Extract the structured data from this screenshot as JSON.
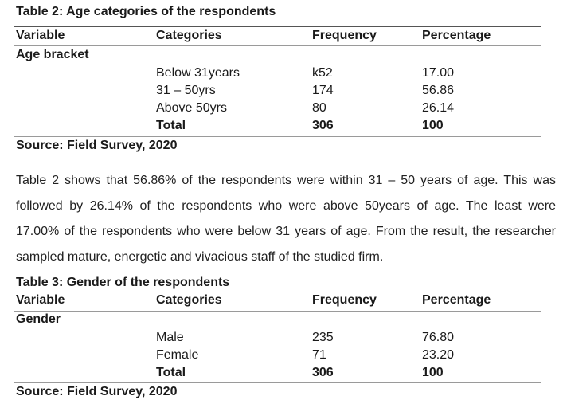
{
  "table2": {
    "title": "Table 2: Age categories of the respondents",
    "headers": [
      "Variable",
      "Categories",
      "Frequency",
      "Percentage"
    ],
    "variable": "Age bracket",
    "rows": [
      {
        "category": "Below 31years",
        "frequency": "k52",
        "percentage": "17.00"
      },
      {
        "category": "31 – 50yrs",
        "frequency": "174",
        "percentage": "56.86"
      },
      {
        "category": "Above 50yrs",
        "frequency": "80",
        "percentage": "26.14"
      }
    ],
    "total": {
      "category": "Total",
      "frequency": "306",
      "percentage": "100"
    },
    "source": "Source: Field Survey, 2020"
  },
  "paragraph": "Table 2 shows that 56.86% of the respondents were within 31 – 50 years of age. This was followed by 26.14% of the respondents who were above 50years of age. The least were 17.00% of the respondents who were below 31 years of age. From the result, the researcher sampled mature, energetic and vivacious staff of the studied firm.",
  "table3": {
    "title": "Table 3: Gender of the respondents",
    "headers": [
      "Variable",
      "Categories",
      "Frequency",
      "Percentage"
    ],
    "variable": "Gender",
    "rows": [
      {
        "category": "Male",
        "frequency": "235",
        "percentage": "76.80"
      },
      {
        "category": "Female",
        "frequency": "71",
        "percentage": "23.20"
      }
    ],
    "total": {
      "category": "Total",
      "frequency": "306",
      "percentage": "100"
    },
    "source": "Source: Field Survey, 2020"
  }
}
